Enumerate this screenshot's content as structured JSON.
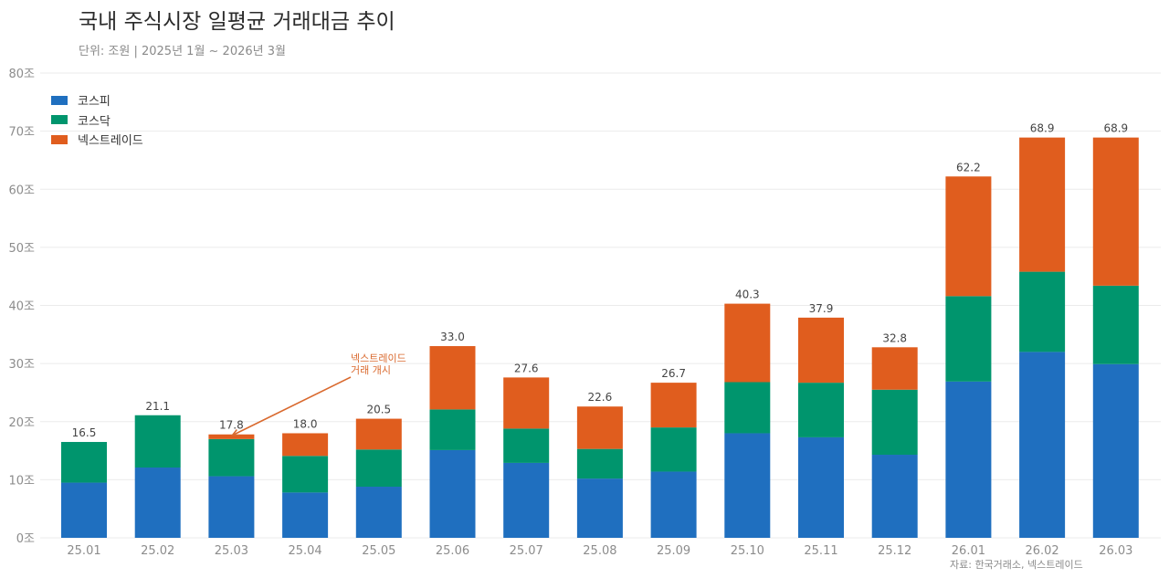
{
  "header": {
    "title": "국내 주식시장 일평균 거래대금 추이",
    "subtitle": "단위: 조원  |  2025년 1월 ~ 2026년 3월"
  },
  "source_note": "자료: 한국거래소, 넥스트레이드",
  "chart_data": {
    "type": "bar",
    "stacked": true,
    "title": "국내 주식시장 일평균 거래대금 추이",
    "xlabel": "",
    "ylabel": "",
    "ylim": [
      0,
      80
    ],
    "yticks": [
      0,
      10,
      20,
      30,
      40,
      50,
      60,
      70,
      80
    ],
    "ytick_suffix": "조",
    "grid": true,
    "legend_position": "top-left",
    "categories": [
      "25.01",
      "25.02",
      "25.03",
      "25.04",
      "25.05",
      "25.06",
      "25.07",
      "25.08",
      "25.09",
      "25.10",
      "25.11",
      "25.12",
      "26.01",
      "26.02",
      "26.03"
    ],
    "series": [
      {
        "name": "코스피",
        "color": "#1f6fbf",
        "values": [
          9.5,
          12.1,
          10.6,
          7.8,
          8.8,
          15.1,
          12.9,
          10.2,
          11.4,
          18.0,
          17.3,
          14.3,
          26.9,
          32.0,
          29.9
        ]
      },
      {
        "name": "코스닥",
        "color": "#00956d",
        "values": [
          7.0,
          9.0,
          6.4,
          6.3,
          6.4,
          7.0,
          5.9,
          5.1,
          7.6,
          8.8,
          9.4,
          11.2,
          14.7,
          13.8,
          13.5
        ]
      },
      {
        "name": "넥스트레이드",
        "color": "#e05d1e",
        "values": [
          0,
          0,
          0.8,
          3.9,
          5.3,
          10.9,
          8.8,
          7.3,
          7.7,
          13.5,
          11.2,
          7.3,
          20.6,
          23.1,
          25.5
        ]
      }
    ],
    "totals": [
      16.5,
      21.1,
      17.8,
      18.0,
      20.5,
      33.0,
      27.6,
      22.6,
      26.7,
      40.3,
      37.9,
      32.8,
      62.2,
      68.9,
      68.9
    ],
    "total_labels": [
      "16.5",
      "21.1",
      "17.8",
      "18.0",
      "20.5",
      "33.0",
      "27.6",
      "22.6",
      "26.7",
      "40.3",
      "37.9",
      "32.8",
      "62.2",
      "68.9",
      "68.9"
    ],
    "annotation": {
      "line1": "넥스트레이드",
      "line2": "거래 개시",
      "target_category": "25.03",
      "color": "#d9692e"
    }
  }
}
